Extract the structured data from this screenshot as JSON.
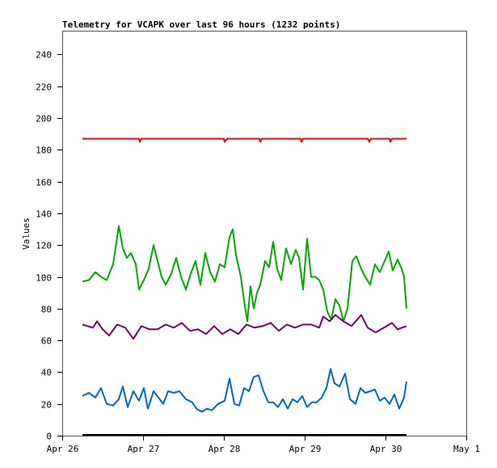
{
  "chart_data": {
    "type": "line",
    "title": "Telemetry for VCAPK over last 96 hours (1232 points)",
    "xlabel": "",
    "ylabel": "Values",
    "x_unit": "days since Apr 26 00:00",
    "xlim": [
      0,
      5
    ],
    "ylim": [
      0,
      255
    ],
    "x_ticks": [
      {
        "value": 0,
        "label": "Apr 26"
      },
      {
        "value": 1,
        "label": "Apr 27"
      },
      {
        "value": 2,
        "label": "Apr 28"
      },
      {
        "value": 3,
        "label": "Apr 29"
      },
      {
        "value": 4,
        "label": "Apr 30"
      },
      {
        "value": 5,
        "label": "May 1"
      }
    ],
    "y_ticks": [
      0,
      20,
      40,
      60,
      80,
      100,
      120,
      140,
      160,
      180,
      200,
      220,
      240
    ],
    "grid": false,
    "legend": "none",
    "series": [
      {
        "name": "red",
        "color": "#ff0000",
        "points": [
          [
            0.25,
            187
          ],
          [
            0.95,
            187
          ],
          [
            0.96,
            185
          ],
          [
            0.98,
            187
          ],
          [
            2.0,
            187
          ],
          [
            2.01,
            185
          ],
          [
            2.04,
            187
          ],
          [
            2.44,
            187
          ],
          [
            2.45,
            185
          ],
          [
            2.47,
            187
          ],
          [
            2.95,
            187
          ],
          [
            2.96,
            185
          ],
          [
            2.98,
            187
          ],
          [
            3.78,
            187
          ],
          [
            3.8,
            185
          ],
          [
            3.82,
            187
          ],
          [
            4.05,
            187
          ],
          [
            4.06,
            185
          ],
          [
            4.08,
            187
          ],
          [
            4.26,
            187
          ]
        ]
      },
      {
        "name": "green",
        "color": "#00aa00",
        "points": [
          [
            0.25,
            97
          ],
          [
            0.33,
            98
          ],
          [
            0.41,
            103
          ],
          [
            0.48,
            100
          ],
          [
            0.55,
            98
          ],
          [
            0.63,
            108
          ],
          [
            0.7,
            132
          ],
          [
            0.75,
            118
          ],
          [
            0.8,
            112
          ],
          [
            0.85,
            115
          ],
          [
            0.91,
            108
          ],
          [
            0.95,
            92
          ],
          [
            1.01,
            98
          ],
          [
            1.07,
            105
          ],
          [
            1.13,
            120
          ],
          [
            1.18,
            110
          ],
          [
            1.23,
            100
          ],
          [
            1.28,
            95
          ],
          [
            1.35,
            102
          ],
          [
            1.41,
            112
          ],
          [
            1.47,
            100
          ],
          [
            1.53,
            92
          ],
          [
            1.59,
            102
          ],
          [
            1.65,
            110
          ],
          [
            1.71,
            95
          ],
          [
            1.77,
            115
          ],
          [
            1.83,
            103
          ],
          [
            1.89,
            97
          ],
          [
            1.95,
            108
          ],
          [
            2.01,
            106
          ],
          [
            2.07,
            125
          ],
          [
            2.11,
            130
          ],
          [
            2.15,
            114
          ],
          [
            2.21,
            100
          ],
          [
            2.25,
            85
          ],
          [
            2.29,
            72
          ],
          [
            2.33,
            94
          ],
          [
            2.37,
            80
          ],
          [
            2.41,
            90
          ],
          [
            2.45,
            95
          ],
          [
            2.51,
            110
          ],
          [
            2.56,
            106
          ],
          [
            2.61,
            122
          ],
          [
            2.66,
            105
          ],
          [
            2.71,
            98
          ],
          [
            2.77,
            118
          ],
          [
            2.83,
            108
          ],
          [
            2.89,
            117
          ],
          [
            2.93,
            112
          ],
          [
            2.98,
            92
          ],
          [
            3.03,
            124
          ],
          [
            3.08,
            100
          ],
          [
            3.13,
            100
          ],
          [
            3.18,
            98
          ],
          [
            3.23,
            92
          ],
          [
            3.28,
            78
          ],
          [
            3.33,
            73
          ],
          [
            3.38,
            86
          ],
          [
            3.43,
            82
          ],
          [
            3.48,
            72
          ],
          [
            3.53,
            80
          ],
          [
            3.59,
            110
          ],
          [
            3.64,
            113
          ],
          [
            3.7,
            105
          ],
          [
            3.75,
            100
          ],
          [
            3.81,
            95
          ],
          [
            3.87,
            108
          ],
          [
            3.93,
            103
          ],
          [
            3.99,
            110
          ],
          [
            4.04,
            116
          ],
          [
            4.09,
            104
          ],
          [
            4.15,
            111
          ],
          [
            4.2,
            105
          ],
          [
            4.23,
            100
          ],
          [
            4.26,
            80
          ]
        ]
      },
      {
        "name": "purple",
        "color": "#770077",
        "points": [
          [
            0.25,
            70
          ],
          [
            0.38,
            68
          ],
          [
            0.43,
            72
          ],
          [
            0.5,
            67
          ],
          [
            0.58,
            63
          ],
          [
            0.68,
            70
          ],
          [
            0.78,
            68
          ],
          [
            0.88,
            61
          ],
          [
            0.98,
            69
          ],
          [
            1.08,
            67
          ],
          [
            1.18,
            67
          ],
          [
            1.28,
            70
          ],
          [
            1.38,
            68
          ],
          [
            1.48,
            71
          ],
          [
            1.58,
            66
          ],
          [
            1.68,
            67
          ],
          [
            1.78,
            64
          ],
          [
            1.88,
            69
          ],
          [
            1.98,
            64
          ],
          [
            2.08,
            67
          ],
          [
            2.18,
            64
          ],
          [
            2.28,
            70
          ],
          [
            2.38,
            68
          ],
          [
            2.48,
            69
          ],
          [
            2.58,
            71
          ],
          [
            2.68,
            66
          ],
          [
            2.78,
            70
          ],
          [
            2.88,
            68
          ],
          [
            2.98,
            70
          ],
          [
            3.08,
            70
          ],
          [
            3.18,
            68
          ],
          [
            3.23,
            75
          ],
          [
            3.31,
            72
          ],
          [
            3.38,
            76
          ],
          [
            3.48,
            72
          ],
          [
            3.58,
            69
          ],
          [
            3.7,
            76
          ],
          [
            3.78,
            68
          ],
          [
            3.88,
            65
          ],
          [
            3.98,
            68
          ],
          [
            4.08,
            71
          ],
          [
            4.15,
            67
          ],
          [
            4.26,
            69
          ]
        ]
      },
      {
        "name": "blue",
        "color": "#0066cc",
        "points": [
          [
            0.25,
            25
          ],
          [
            0.33,
            27
          ],
          [
            0.41,
            24
          ],
          [
            0.48,
            30
          ],
          [
            0.55,
            20
          ],
          [
            0.63,
            19
          ],
          [
            0.7,
            23
          ],
          [
            0.75,
            31
          ],
          [
            0.81,
            18
          ],
          [
            0.88,
            28
          ],
          [
            0.95,
            22
          ],
          [
            1.01,
            30
          ],
          [
            1.06,
            17
          ],
          [
            1.13,
            28
          ],
          [
            1.19,
            24
          ],
          [
            1.25,
            20
          ],
          [
            1.31,
            28
          ],
          [
            1.38,
            27
          ],
          [
            1.45,
            28
          ],
          [
            1.53,
            23
          ],
          [
            1.61,
            21
          ],
          [
            1.66,
            17
          ],
          [
            1.73,
            15
          ],
          [
            1.79,
            17
          ],
          [
            1.85,
            16
          ],
          [
            1.93,
            20
          ],
          [
            2.01,
            22
          ],
          [
            2.07,
            36
          ],
          [
            2.13,
            20
          ],
          [
            2.19,
            19
          ],
          [
            2.25,
            30
          ],
          [
            2.31,
            28
          ],
          [
            2.37,
            37
          ],
          [
            2.43,
            38
          ],
          [
            2.49,
            28
          ],
          [
            2.55,
            21
          ],
          [
            2.61,
            21
          ],
          [
            2.67,
            18
          ],
          [
            2.73,
            23
          ],
          [
            2.79,
            17
          ],
          [
            2.85,
            23
          ],
          [
            2.91,
            21
          ],
          [
            2.97,
            25
          ],
          [
            3.03,
            18
          ],
          [
            3.09,
            21
          ],
          [
            3.15,
            21
          ],
          [
            3.21,
            24
          ],
          [
            3.27,
            30
          ],
          [
            3.32,
            42
          ],
          [
            3.37,
            33
          ],
          [
            3.43,
            31
          ],
          [
            3.5,
            39
          ],
          [
            3.56,
            23
          ],
          [
            3.63,
            20
          ],
          [
            3.69,
            30
          ],
          [
            3.75,
            27
          ],
          [
            3.81,
            28
          ],
          [
            3.87,
            29
          ],
          [
            3.93,
            22
          ],
          [
            3.99,
            24
          ],
          [
            4.05,
            20
          ],
          [
            4.11,
            26
          ],
          [
            4.17,
            17
          ],
          [
            4.23,
            24
          ],
          [
            4.26,
            34
          ]
        ]
      },
      {
        "name": "black",
        "color": "#000000",
        "points": [
          [
            0.25,
            0.5
          ],
          [
            4.26,
            0.5
          ]
        ]
      }
    ]
  }
}
